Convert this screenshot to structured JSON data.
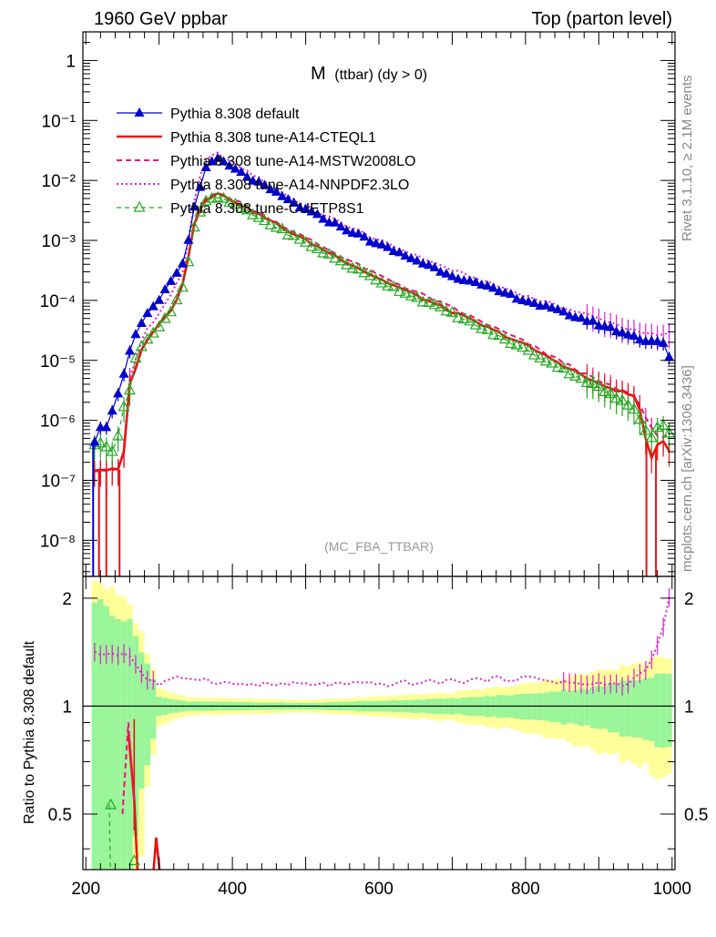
{
  "header": {
    "left": "1960 GeV ppbar",
    "right": "Top (parton level)"
  },
  "plot_title": "M (ttbar) (dy > 0)",
  "plot_title_main": "M",
  "plot_title_sub": "(ttbar) (dy > 0)",
  "analysis_label": "(MC_FBA_TTBAR)",
  "side_text_top": "Rivet 3.1.10, ≥ 2.1M events",
  "side_text_bottom": "mcplots.cern.ch [arXiv:1306.3436]",
  "ratio_ylabel": "Ratio to Pythia 8.308 default",
  "colors": {
    "default": "#0000cc",
    "cteq": "#ee1111",
    "mstw": "#ee1177",
    "nnpdf": "#dd22cc",
    "cuetp": "#22aa22",
    "band_inner": "#99f599",
    "band_outer": "#ffff99"
  },
  "chart_data": {
    "type": "line",
    "xlim": [
      196,
      1004
    ],
    "main_ylim": [
      2.5e-09,
      3
    ],
    "main_yscale": "log",
    "main_ytick_labels": [
      "10⁻⁸",
      "10⁻⁷",
      "10⁻⁶",
      "10⁻⁵",
      "10⁻⁴",
      "10⁻³",
      "10⁻²",
      "10⁻¹",
      "1"
    ],
    "ratio_ylim": [
      0.35,
      2.3
    ],
    "ratio_ytick_labels": [
      "0.5",
      "1",
      "2"
    ],
    "xtick_labels": [
      "200",
      "400",
      "600",
      "800",
      "1000"
    ],
    "legend_position": "top-left",
    "series": [
      {
        "name": "Pythia 8.308 default",
        "key": "default",
        "marker": "filled-triangle",
        "line": "solid"
      },
      {
        "name": "Pythia 8.308 tune-A14-CTEQL1",
        "key": "cteq",
        "marker": "none",
        "line": "solid-thick"
      },
      {
        "name": "Pythia 8.308 tune-A14-MSTW2008LO",
        "key": "mstw",
        "marker": "none",
        "line": "dashed"
      },
      {
        "name": "Pythia 8.308 tune-A14-NNPDF2.3LO",
        "key": "nnpdf",
        "marker": "none",
        "line": "dotted"
      },
      {
        "name": "Pythia 8.308 tune-CUETP8S1",
        "key": "cuetp",
        "marker": "open-triangle",
        "line": "dashed"
      }
    ],
    "anchors": {
      "default": [
        [
          210,
          4e-07
        ],
        [
          220,
          8e-07
        ],
        [
          230,
          8e-07
        ],
        [
          250,
          5e-06
        ],
        [
          260,
          1.4e-05
        ],
        [
          270,
          3e-05
        ],
        [
          280,
          5e-05
        ],
        [
          300,
          0.0001
        ],
        [
          320,
          0.00025
        ],
        [
          335,
          0.00045
        ],
        [
          350,
          0.005
        ],
        [
          365,
          0.017
        ],
        [
          380,
          0.023
        ],
        [
          400,
          0.016
        ],
        [
          500,
          0.0032
        ],
        [
          600,
          0.00085
        ],
        [
          700,
          0.00026
        ],
        [
          800,
          0.0001
        ],
        [
          900,
          4e-05
        ],
        [
          960,
          2.2e-05
        ],
        [
          990,
          2e-05
        ],
        [
          998,
          9e-06
        ]
      ],
      "cteq": [
        [
          220,
          1.5e-07
        ],
        [
          250,
          1.5e-07
        ],
        [
          260,
          4e-06
        ],
        [
          280,
          2e-05
        ],
        [
          300,
          4e-05
        ],
        [
          320,
          8e-05
        ],
        [
          335,
          0.00024
        ],
        [
          350,
          0.0026
        ],
        [
          365,
          0.0052
        ],
        [
          380,
          0.006
        ],
        [
          400,
          0.0047
        ],
        [
          500,
          0.001
        ],
        [
          600,
          0.00023
        ],
        [
          700,
          6.5e-05
        ],
        [
          800,
          1.8e-05
        ],
        [
          900,
          4e-06
        ],
        [
          950,
          2.5e-06
        ],
        [
          960,
          1e-06
        ],
        [
          970,
          2e-07
        ],
        [
          985,
          5e-07
        ],
        [
          998,
          3e-07
        ]
      ],
      "mstw": [
        [
          220,
          1.5e-07
        ],
        [
          250,
          1.5e-07
        ],
        [
          260,
          4e-06
        ],
        [
          280,
          2e-05
        ],
        [
          300,
          4e-05
        ],
        [
          320,
          8e-05
        ],
        [
          335,
          0.00024
        ],
        [
          350,
          0.0026
        ],
        [
          365,
          0.0052
        ],
        [
          380,
          0.0062
        ],
        [
          400,
          0.005
        ],
        [
          500,
          0.0011
        ],
        [
          600,
          0.00026
        ],
        [
          700,
          7.5e-05
        ],
        [
          800,
          2e-05
        ],
        [
          900,
          4.5e-06
        ],
        [
          950,
          2.5e-06
        ],
        [
          970,
          8e-07
        ],
        [
          985,
          5e-07
        ],
        [
          998,
          6e-07
        ]
      ],
      "nnpdf": [
        [
          220,
          1.5e-07
        ],
        [
          250,
          1.5e-07
        ],
        [
          260,
          5e-06
        ],
        [
          280,
          3e-05
        ],
        [
          300,
          6e-05
        ],
        [
          320,
          0.00015
        ],
        [
          335,
          0.00035
        ],
        [
          350,
          0.007
        ],
        [
          365,
          0.023
        ],
        [
          380,
          0.028
        ],
        [
          400,
          0.02
        ],
        [
          500,
          0.0037
        ],
        [
          600,
          0.001
        ],
        [
          700,
          0.00032
        ],
        [
          800,
          0.00012
        ],
        [
          900,
          5e-05
        ],
        [
          960,
          2.8e-05
        ],
        [
          990,
          2.6e-05
        ],
        [
          998,
          3e-05
        ]
      ],
      "cuetp": [
        [
          220,
          4e-07
        ],
        [
          240,
          3e-07
        ],
        [
          250,
          1.5e-06
        ],
        [
          260,
          3e-06
        ],
        [
          270,
          1.5e-05
        ],
        [
          280,
          2e-05
        ],
        [
          300,
          3.5e-05
        ],
        [
          320,
          8e-05
        ],
        [
          335,
          0.0002
        ],
        [
          350,
          0.0023
        ],
        [
          365,
          0.0045
        ],
        [
          380,
          0.0052
        ],
        [
          400,
          0.0041
        ],
        [
          500,
          0.0009
        ],
        [
          600,
          0.00021
        ],
        [
          700,
          6e-05
        ],
        [
          800,
          1.5e-05
        ],
        [
          900,
          3.5e-06
        ],
        [
          950,
          1.5e-06
        ],
        [
          970,
          5e-07
        ],
        [
          985,
          9e-07
        ],
        [
          998,
          6e-07
        ]
      ]
    },
    "ratio_anchors": {
      "nnpdf": [
        [
          258,
          1.4
        ],
        [
          280,
          1.2
        ],
        [
          300,
          1.15
        ],
        [
          330,
          1.2
        ],
        [
          350,
          1.2
        ],
        [
          400,
          1.15
        ],
        [
          600,
          1.15
        ],
        [
          800,
          1.2
        ],
        [
          880,
          1.15
        ],
        [
          940,
          1.15
        ],
        [
          970,
          1.3
        ],
        [
          990,
          1.7
        ],
        [
          1000,
          2.2
        ]
      ],
      "band_inner": [
        [
          210,
          1.0
        ],
        [
          260,
          0.7
        ],
        [
          300,
          0.06
        ],
        [
          340,
          0.03
        ],
        [
          500,
          0.02
        ],
        [
          700,
          0.05
        ],
        [
          800,
          0.08
        ],
        [
          900,
          0.13
        ],
        [
          960,
          0.2
        ],
        [
          1000,
          0.25
        ]
      ],
      "band_outer": [
        [
          210,
          1.3
        ],
        [
          260,
          0.9
        ],
        [
          300,
          0.12
        ],
        [
          340,
          0.06
        ],
        [
          500,
          0.04
        ],
        [
          700,
          0.09
        ],
        [
          800,
          0.15
        ],
        [
          900,
          0.25
        ],
        [
          960,
          0.32
        ],
        [
          1000,
          0.38
        ]
      ]
    }
  }
}
